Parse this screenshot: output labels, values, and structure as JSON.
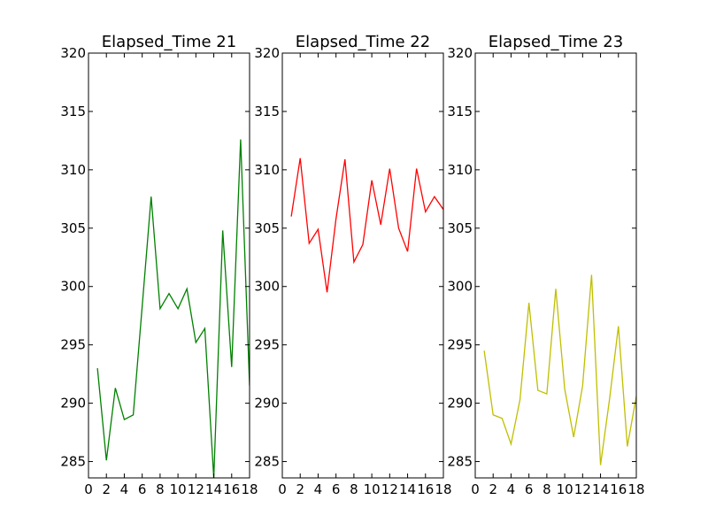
{
  "chart_data": [
    {
      "type": "line",
      "title": "Elapsed_Time 21",
      "xlim": [
        0,
        18
      ],
      "ylim": [
        283.6,
        320
      ],
      "xticks": [
        0,
        2,
        4,
        6,
        8,
        10,
        12,
        14,
        16,
        18
      ],
      "xtick_labels": [
        "0",
        "2",
        "4",
        "6",
        "8",
        "10",
        "12",
        "14",
        "16",
        "18"
      ],
      "yticks": [
        285,
        290,
        295,
        300,
        305,
        310,
        315,
        320
      ],
      "ytick_labels": [
        "285",
        "290",
        "295",
        "300",
        "305",
        "310",
        "315",
        "320"
      ],
      "color": "#008000",
      "x": [
        1,
        2,
        3,
        4,
        5,
        6,
        7,
        8,
        9,
        10,
        11,
        12,
        13,
        14,
        15,
        16,
        17,
        18
      ],
      "values": [
        293.0,
        285.1,
        291.3,
        288.6,
        289.0,
        298.3,
        307.7,
        298.1,
        299.4,
        298.1,
        299.8,
        295.2,
        296.4,
        283.6,
        304.8,
        293.1,
        312.6,
        291.5
      ]
    },
    {
      "type": "line",
      "title": "Elapsed_Time 22",
      "xlim": [
        0,
        18
      ],
      "ylim": [
        283.6,
        320
      ],
      "xticks": [
        0,
        2,
        4,
        6,
        8,
        10,
        12,
        14,
        16,
        18
      ],
      "xtick_labels": [
        "0",
        "2",
        "4",
        "6",
        "8",
        "10",
        "12",
        "14",
        "16",
        "18"
      ],
      "yticks": [
        285,
        290,
        295,
        300,
        305,
        310,
        315,
        320
      ],
      "ytick_labels": [
        "285",
        "290",
        "295",
        "300",
        "305",
        "310",
        "315",
        "320"
      ],
      "color": "#ff0000",
      "x": [
        1,
        2,
        3,
        4,
        5,
        6,
        7,
        8,
        9,
        10,
        11,
        12,
        13,
        14,
        15,
        16,
        17,
        18
      ],
      "values": [
        306.0,
        311.0,
        303.7,
        304.9,
        299.5,
        305.8,
        310.9,
        302.1,
        303.6,
        309.1,
        305.3,
        310.1,
        305.0,
        303.0,
        310.1,
        306.4,
        307.7,
        306.6
      ]
    },
    {
      "type": "line",
      "title": "Elapsed_Time 23",
      "xlim": [
        0,
        18
      ],
      "ylim": [
        283.6,
        320
      ],
      "xticks": [
        0,
        2,
        4,
        6,
        8,
        10,
        12,
        14,
        16,
        18
      ],
      "xtick_labels": [
        "0",
        "2",
        "4",
        "6",
        "8",
        "10",
        "12",
        "14",
        "16",
        "18"
      ],
      "yticks": [
        285,
        290,
        295,
        300,
        305,
        310,
        315,
        320
      ],
      "ytick_labels": [
        "285",
        "290",
        "295",
        "300",
        "305",
        "310",
        "315",
        "320"
      ],
      "color": "#bfbf00",
      "x": [
        1,
        2,
        3,
        4,
        5,
        6,
        7,
        8,
        9,
        10,
        11,
        12,
        13,
        14,
        15,
        16,
        17,
        18
      ],
      "values": [
        294.5,
        289.0,
        288.7,
        286.5,
        290.3,
        298.6,
        291.1,
        290.8,
        299.8,
        291.2,
        287.1,
        291.5,
        301.0,
        284.7,
        290.3,
        296.6,
        286.3,
        290.6
      ]
    }
  ]
}
